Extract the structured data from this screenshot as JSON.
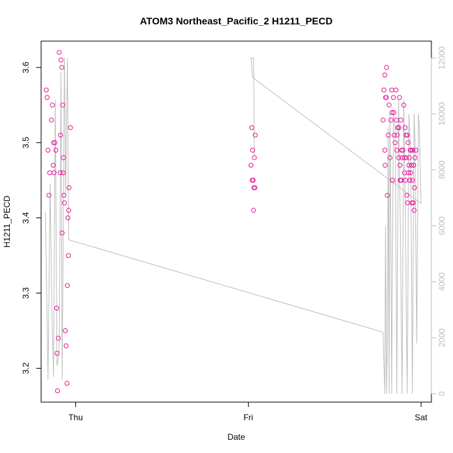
{
  "chart_data": {
    "type": "scatter",
    "title": "ATOM3 Northeast_Pacific_2 H1211_PECD",
    "xlabel": "Date",
    "ylabel": "H1211_PECD",
    "x_ticks": [
      "Thu",
      "Fri",
      "Sat"
    ],
    "x_tick_days": [
      0,
      1,
      2
    ],
    "xlim_days": [
      -0.2,
      2.06
    ],
    "y_ticks": [
      "3.2",
      "3.3",
      "3.4",
      "3.5",
      "3.6"
    ],
    "ylim": [
      3.155,
      3.635
    ],
    "y2_ticks": [
      "0",
      "2000",
      "4000",
      "6000",
      "8000",
      "10000",
      "12000"
    ],
    "y2lim": [
      -300,
      12600
    ],
    "colors": {
      "points": "#e8179b",
      "secondary_line": "#bebebe",
      "axis": "#000000",
      "secondary_axis": "#bebebe"
    },
    "series": [
      {
        "type": "scatter",
        "axis": "left",
        "points": [
          [
            -0.17,
            3.57
          ],
          [
            -0.165,
            3.56
          ],
          [
            -0.16,
            3.49
          ],
          [
            -0.155,
            3.43
          ],
          [
            -0.15,
            3.46
          ],
          [
            -0.14,
            3.53
          ],
          [
            -0.135,
            3.55
          ],
          [
            -0.13,
            3.47
          ],
          [
            -0.128,
            3.5
          ],
          [
            -0.125,
            3.46
          ],
          [
            -0.12,
            3.5
          ],
          [
            -0.115,
            3.49
          ],
          [
            -0.11,
            3.28
          ],
          [
            -0.108,
            3.22
          ],
          [
            -0.105,
            3.17
          ],
          [
            -0.1,
            3.24
          ],
          [
            -0.095,
            3.62
          ],
          [
            -0.09,
            3.46
          ],
          [
            -0.088,
            3.51
          ],
          [
            -0.085,
            3.61
          ],
          [
            -0.08,
            3.6
          ],
          [
            -0.078,
            3.38
          ],
          [
            -0.075,
            3.55
          ],
          [
            -0.072,
            3.46
          ],
          [
            -0.07,
            3.48
          ],
          [
            -0.068,
            3.43
          ],
          [
            -0.065,
            3.42
          ],
          [
            -0.06,
            3.25
          ],
          [
            -0.055,
            3.23
          ],
          [
            -0.05,
            3.18
          ],
          [
            -0.048,
            3.31
          ],
          [
            -0.045,
            3.4
          ],
          [
            -0.042,
            3.35
          ],
          [
            -0.04,
            3.41
          ],
          [
            -0.038,
            3.44
          ],
          [
            -0.03,
            3.52
          ],
          [
            1.02,
            3.52
          ],
          [
            1.015,
            3.47
          ],
          [
            1.025,
            3.49
          ],
          [
            1.028,
            3.45
          ],
          [
            1.032,
            3.44
          ],
          [
            1.035,
            3.48
          ],
          [
            1.022,
            3.45
          ],
          [
            1.03,
            3.41
          ],
          [
            1.04,
            3.51
          ],
          [
            1.038,
            3.44
          ],
          [
            1.78,
            3.53
          ],
          [
            1.785,
            3.57
          ],
          [
            1.79,
            3.59
          ],
          [
            1.795,
            3.56
          ],
          [
            1.8,
            3.6
          ],
          [
            1.805,
            3.43
          ],
          [
            1.79,
            3.49
          ],
          [
            1.792,
            3.47
          ],
          [
            1.798,
            3.56
          ],
          [
            1.81,
            3.51
          ],
          [
            1.815,
            3.55
          ],
          [
            1.82,
            3.48
          ],
          [
            1.825,
            3.53
          ],
          [
            1.83,
            3.57
          ],
          [
            1.832,
            3.54
          ],
          [
            1.835,
            3.45
          ],
          [
            1.84,
            3.56
          ],
          [
            1.842,
            3.54
          ],
          [
            1.845,
            3.51
          ],
          [
            1.85,
            3.5
          ],
          [
            1.855,
            3.57
          ],
          [
            1.858,
            3.53
          ],
          [
            1.86,
            3.49
          ],
          [
            1.862,
            3.51
          ],
          [
            1.865,
            3.52
          ],
          [
            1.87,
            3.48
          ],
          [
            1.872,
            3.52
          ],
          [
            1.875,
            3.56
          ],
          [
            1.878,
            3.47
          ],
          [
            1.88,
            3.45
          ],
          [
            1.883,
            3.53
          ],
          [
            1.885,
            3.45
          ],
          [
            1.888,
            3.49
          ],
          [
            1.89,
            3.48
          ],
          [
            1.895,
            3.49
          ],
          [
            1.9,
            3.55
          ],
          [
            1.903,
            3.48
          ],
          [
            1.905,
            3.46
          ],
          [
            1.908,
            3.52
          ],
          [
            1.91,
            3.45
          ],
          [
            1.913,
            3.51
          ],
          [
            1.915,
            3.48
          ],
          [
            1.918,
            3.43
          ],
          [
            1.92,
            3.51
          ],
          [
            1.922,
            3.42
          ],
          [
            1.925,
            3.5
          ],
          [
            1.928,
            3.46
          ],
          [
            1.93,
            3.47
          ],
          [
            1.932,
            3.48
          ],
          [
            1.935,
            3.45
          ],
          [
            1.938,
            3.49
          ],
          [
            1.94,
            3.46
          ],
          [
            1.942,
            3.49
          ],
          [
            1.945,
            3.47
          ],
          [
            1.948,
            3.42
          ],
          [
            1.95,
            3.45
          ],
          [
            1.952,
            3.49
          ],
          [
            1.955,
            3.42
          ],
          [
            1.958,
            3.47
          ],
          [
            1.96,
            3.41
          ],
          [
            1.962,
            3.44
          ],
          [
            1.965,
            3.48
          ],
          [
            1.97,
            3.49
          ]
        ]
      },
      {
        "type": "line",
        "axis": "right",
        "points": [
          [
            -0.175,
            6500
          ],
          [
            -0.16,
            500
          ],
          [
            -0.148,
            7500
          ],
          [
            -0.138,
            3000
          ],
          [
            -0.128,
            600
          ],
          [
            -0.118,
            10500
          ],
          [
            -0.108,
            1000
          ],
          [
            -0.095,
            1500
          ],
          [
            -0.085,
            11500
          ],
          [
            -0.078,
            500
          ],
          [
            -0.065,
            12000
          ],
          [
            -0.058,
            7000
          ],
          [
            -0.048,
            12000
          ],
          [
            -0.04,
            5500
          ],
          [
            -0.04,
            5500
          ],
          [
            1.78,
            2200
          ],
          [
            1.78,
            2200
          ],
          [
            1.79,
            0
          ],
          [
            1.795,
            6000
          ],
          [
            1.8,
            0
          ],
          [
            1.805,
            2000
          ],
          [
            1.81,
            9500
          ],
          [
            1.815,
            0
          ],
          [
            1.82,
            10000
          ],
          [
            1.825,
            6000
          ],
          [
            1.83,
            0
          ],
          [
            1.84,
            10000
          ],
          [
            1.85,
            9500
          ],
          [
            1.86,
            0
          ],
          [
            1.87,
            10500
          ],
          [
            1.88,
            6000
          ],
          [
            1.89,
            0
          ],
          [
            1.9,
            10500
          ],
          [
            1.91,
            6000
          ],
          [
            1.92,
            0
          ],
          [
            1.93,
            10000
          ],
          [
            1.94,
            8500
          ],
          [
            1.95,
            0
          ],
          [
            1.96,
            10000
          ],
          [
            1.965,
            9000
          ],
          [
            1.975,
            1800
          ],
          [
            1.985,
            10000
          ],
          [
            1.99,
            9500
          ],
          [
            2.0,
            6800
          ],
          [
            2.0,
            6800
          ],
          [
            1.025,
            11300
          ],
          [
            1.025,
            11300
          ],
          [
            1.015,
            12000
          ],
          [
            1.03,
            12000
          ],
          [
            1.035,
            8500
          ]
        ]
      }
    ]
  }
}
